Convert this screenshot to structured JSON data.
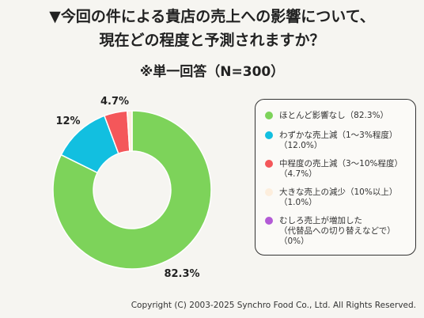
{
  "header": {
    "title_line1": "▼今回の件による貴店の売上への影響について、",
    "title_line2": "現在どの程度と予測されますか？",
    "subtitle": "※単一回答（N=300）"
  },
  "chart_data": {
    "type": "pie",
    "title": "",
    "donut": true,
    "legend_position": "right",
    "slices": [
      {
        "label_lines": [
          "ほとんど影響なし（82.3%）"
        ],
        "value": 82.3,
        "display": "82.3%",
        "color": "#7dd35a"
      },
      {
        "label_lines": [
          "わずかな売上減（1〜3%程度）",
          "（12.0%）"
        ],
        "value": 12.0,
        "display": "12%",
        "color": "#12bfe0"
      },
      {
        "label_lines": [
          "中程度の売上減（3〜10%程度）",
          "（4.7%）"
        ],
        "value": 4.7,
        "display": "4.7%",
        "color": "#f4575a"
      },
      {
        "label_lines": [
          "大きな売上の減少（10%以上）",
          "（1.0%）"
        ],
        "value": 1.0,
        "display": "",
        "color": "#fdeedd"
      },
      {
        "label_lines": [
          "むしろ売上が増加した",
          "（代替品への切り替えなどで）",
          "（0%）"
        ],
        "value": 0,
        "display": "",
        "color": "#b35ad6"
      }
    ]
  },
  "footer": {
    "copyright": "Copyright (C) 2003-2025  Synchro Food Co., Ltd. All Rights Reserved."
  }
}
